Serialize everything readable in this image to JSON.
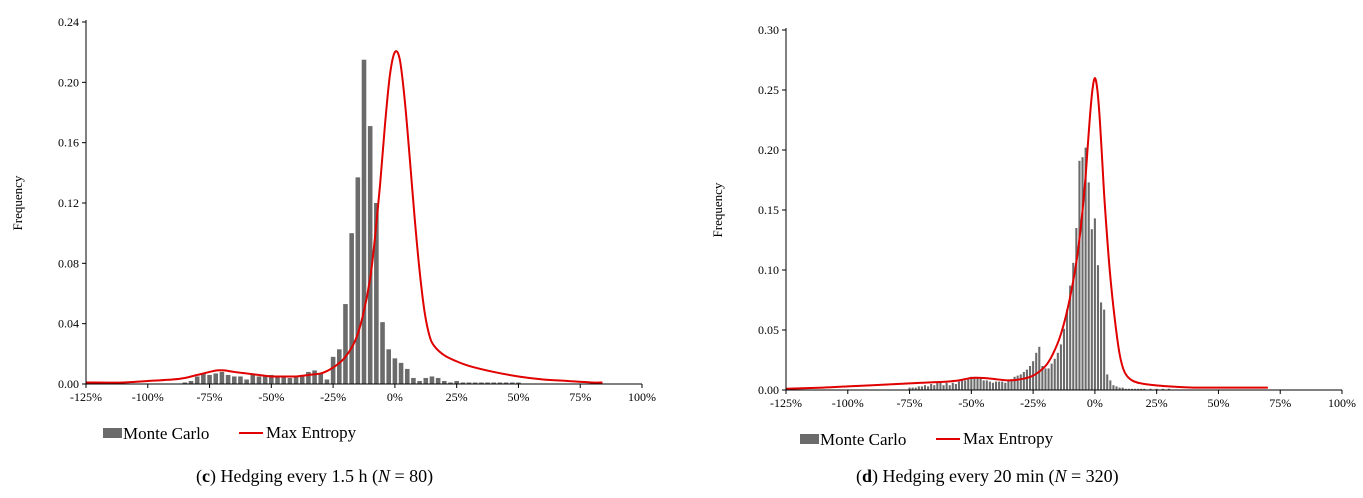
{
  "chart_data": [
    {
      "type": "bar",
      "ylabel": "Frequency",
      "xlabel": "",
      "title": "",
      "xlim": [
        -1.25,
        1.0
      ],
      "ylim": [
        0,
        0.24
      ],
      "xticks": [
        -1.25,
        -1.0,
        -0.75,
        -0.5,
        -0.25,
        0.0,
        0.25,
        0.5,
        0.75,
        1.0
      ],
      "xtick_labels": [
        "-125%",
        "-100%",
        "-75%",
        "-50%",
        "-25%",
        "0%",
        "25%",
        "50%",
        "75%",
        "100%"
      ],
      "yticks": [
        0,
        0.04,
        0.08,
        0.12,
        0.16,
        0.2,
        0.24
      ],
      "ytick_labels": [
        "0.00",
        "0.04",
        "0.08",
        "0.12",
        "0.16",
        "0.20",
        "0.24"
      ],
      "legend": {
        "placement": "bottom-left",
        "entries": [
          "Monte Carlo",
          "Max Entropy"
        ]
      },
      "colors": {
        "bars": "#6b6b6b",
        "line": "#e00000"
      },
      "series": [
        {
          "name": "Monte Carlo",
          "kind": "bar",
          "bin_width": 0.025,
          "x": [
            -0.85,
            -0.825,
            -0.8,
            -0.775,
            -0.75,
            -0.725,
            -0.7,
            -0.675,
            -0.65,
            -0.625,
            -0.6,
            -0.575,
            -0.55,
            -0.525,
            -0.5,
            -0.475,
            -0.45,
            -0.425,
            -0.4,
            -0.375,
            -0.35,
            -0.325,
            -0.3,
            -0.275,
            -0.25,
            -0.225,
            -0.2,
            -0.175,
            -0.15,
            -0.125,
            -0.1,
            -0.075,
            -0.05,
            -0.025,
            0.0,
            0.025,
            0.05,
            0.075,
            0.1,
            0.125,
            0.15,
            0.175,
            0.2,
            0.225,
            0.25,
            0.275,
            0.3,
            0.325,
            0.35,
            0.375,
            0.4,
            0.425,
            0.45,
            0.475,
            0.5
          ],
          "values": [
            0.001,
            0.002,
            0.005,
            0.007,
            0.006,
            0.007,
            0.008,
            0.006,
            0.005,
            0.005,
            0.003,
            0.006,
            0.005,
            0.005,
            0.006,
            0.005,
            0.005,
            0.004,
            0.005,
            0.006,
            0.008,
            0.009,
            0.007,
            0.003,
            0.018,
            0.023,
            0.053,
            0.1,
            0.137,
            0.215,
            0.171,
            0.12,
            0.041,
            0.023,
            0.017,
            0.014,
            0.01,
            0.004,
            0.002,
            0.004,
            0.005,
            0.004,
            0.002,
            0.001,
            0.002,
            0.001,
            0.001,
            0.001,
            0.001,
            0.001,
            0.001,
            0.001,
            0.001,
            0.001,
            0.001
          ]
        },
        {
          "name": "Max Entropy",
          "kind": "line",
          "x": [
            -1.25,
            -1.1,
            -1.0,
            -0.9,
            -0.85,
            -0.8,
            -0.75,
            -0.72,
            -0.69,
            -0.65,
            -0.6,
            -0.55,
            -0.5,
            -0.45,
            -0.4,
            -0.35,
            -0.3,
            -0.27,
            -0.24,
            -0.2,
            -0.16,
            -0.13,
            -0.1,
            -0.08,
            -0.06,
            -0.04,
            -0.02,
            0.0,
            0.02,
            0.04,
            0.06,
            0.08,
            0.1,
            0.12,
            0.14,
            0.16,
            0.2,
            0.25,
            0.3,
            0.4,
            0.5,
            0.6,
            0.7,
            0.8,
            0.84
          ],
          "values": [
            0.001,
            0.001,
            0.002,
            0.003,
            0.004,
            0.006,
            0.008,
            0.009,
            0.009,
            0.008,
            0.007,
            0.006,
            0.005,
            0.005,
            0.005,
            0.006,
            0.007,
            0.009,
            0.012,
            0.018,
            0.029,
            0.045,
            0.07,
            0.098,
            0.132,
            0.172,
            0.205,
            0.22,
            0.215,
            0.188,
            0.15,
            0.11,
            0.075,
            0.048,
            0.032,
            0.025,
            0.019,
            0.015,
            0.012,
            0.008,
            0.005,
            0.003,
            0.002,
            0.001,
            0.001
          ]
        }
      ],
      "caption": {
        "letter": "c",
        "text": "Hedging every 1.5 h (",
        "var": "N",
        "rest": " = 80)"
      }
    },
    {
      "type": "bar",
      "ylabel": "Frequency",
      "xlabel": "",
      "title": "",
      "xlim": [
        -1.25,
        1.0
      ],
      "ylim": [
        0,
        0.3
      ],
      "xticks": [
        -1.25,
        -1.0,
        -0.75,
        -0.5,
        -0.25,
        0.0,
        0.25,
        0.5,
        0.75,
        1.0
      ],
      "xtick_labels": [
        "-125%",
        "-100%",
        "-75%",
        "-50%",
        "-25%",
        "0%",
        "25%",
        "50%",
        "75%",
        "100%"
      ],
      "yticks": [
        0,
        0.05,
        0.1,
        0.15,
        0.2,
        0.25,
        0.3
      ],
      "ytick_labels": [
        "0.00",
        "0.05",
        "0.10",
        "0.15",
        "0.20",
        "0.25",
        "0.30"
      ],
      "legend": {
        "placement": "bottom-left",
        "entries": [
          "Monte Carlo",
          "Max Entropy"
        ]
      },
      "colors": {
        "bars": "#6b6b6b",
        "line": "#e00000"
      },
      "series": [
        {
          "name": "Monte Carlo",
          "kind": "bar",
          "bin_width": 0.0125,
          "x": [
            -0.75,
            -0.7375,
            -0.725,
            -0.7125,
            -0.7,
            -0.6875,
            -0.675,
            -0.6625,
            -0.65,
            -0.6375,
            -0.625,
            -0.6125,
            -0.6,
            -0.5875,
            -0.575,
            -0.5625,
            -0.55,
            -0.5375,
            -0.525,
            -0.5125,
            -0.5,
            -0.4875,
            -0.475,
            -0.4625,
            -0.45,
            -0.4375,
            -0.425,
            -0.4125,
            -0.4,
            -0.3875,
            -0.375,
            -0.3625,
            -0.35,
            -0.3375,
            -0.325,
            -0.3125,
            -0.3,
            -0.2875,
            -0.275,
            -0.2625,
            -0.25,
            -0.2375,
            -0.225,
            -0.2125,
            -0.2,
            -0.1875,
            -0.175,
            -0.1625,
            -0.15,
            -0.1375,
            -0.125,
            -0.1125,
            -0.1,
            -0.0875,
            -0.075,
            -0.0625,
            -0.05,
            -0.0375,
            -0.025,
            -0.0125,
            0.0,
            0.0125,
            0.025,
            0.0375,
            0.05,
            0.0625,
            0.075,
            0.0875,
            0.1,
            0.1125,
            0.125,
            0.1375,
            0.15,
            0.1625,
            0.175,
            0.1875,
            0.2,
            0.225,
            0.25,
            0.275,
            0.3
          ],
          "values": [
            0.002,
            0.002,
            0.002,
            0.003,
            0.003,
            0.004,
            0.003,
            0.005,
            0.004,
            0.006,
            0.006,
            0.004,
            0.006,
            0.004,
            0.006,
            0.005,
            0.007,
            0.008,
            0.008,
            0.009,
            0.011,
            0.011,
            0.01,
            0.01,
            0.008,
            0.008,
            0.007,
            0.006,
            0.007,
            0.007,
            0.007,
            0.006,
            0.008,
            0.009,
            0.011,
            0.012,
            0.013,
            0.015,
            0.017,
            0.02,
            0.024,
            0.031,
            0.036,
            0.02,
            0.018,
            0.018,
            0.022,
            0.026,
            0.031,
            0.038,
            0.051,
            0.067,
            0.087,
            0.106,
            0.135,
            0.191,
            0.194,
            0.202,
            0.173,
            0.134,
            0.143,
            0.104,
            0.073,
            0.067,
            0.013,
            0.008,
            0.004,
            0.003,
            0.002,
            0.002,
            0.001,
            0.001,
            0.001,
            0.001,
            0.001,
            0.001,
            0.001,
            0.001,
            0.001,
            0.001,
            0.001
          ]
        },
        {
          "name": "Max Entropy",
          "kind": "line",
          "x": [
            -1.25,
            -1.1,
            -1.0,
            -0.9,
            -0.8,
            -0.7,
            -0.6,
            -0.55,
            -0.5,
            -0.45,
            -0.4,
            -0.35,
            -0.3,
            -0.25,
            -0.2,
            -0.17,
            -0.14,
            -0.11,
            -0.08,
            -0.06,
            -0.04,
            -0.03,
            -0.02,
            -0.01,
            0.0,
            0.01,
            0.02,
            0.03,
            0.04,
            0.06,
            0.08,
            0.1,
            0.12,
            0.15,
            0.2,
            0.3,
            0.4,
            0.5,
            0.6,
            0.7
          ],
          "values": [
            0.001,
            0.002,
            0.003,
            0.004,
            0.005,
            0.006,
            0.007,
            0.008,
            0.01,
            0.01,
            0.009,
            0.008,
            0.009,
            0.012,
            0.02,
            0.03,
            0.045,
            0.068,
            0.1,
            0.13,
            0.172,
            0.2,
            0.228,
            0.25,
            0.26,
            0.25,
            0.225,
            0.19,
            0.155,
            0.1,
            0.06,
            0.03,
            0.015,
            0.008,
            0.005,
            0.003,
            0.002,
            0.002,
            0.002,
            0.002
          ]
        }
      ],
      "caption": {
        "letter": "d",
        "text": "Hedging every 20 min (",
        "var": "N",
        "rest": " = 320)"
      }
    }
  ]
}
